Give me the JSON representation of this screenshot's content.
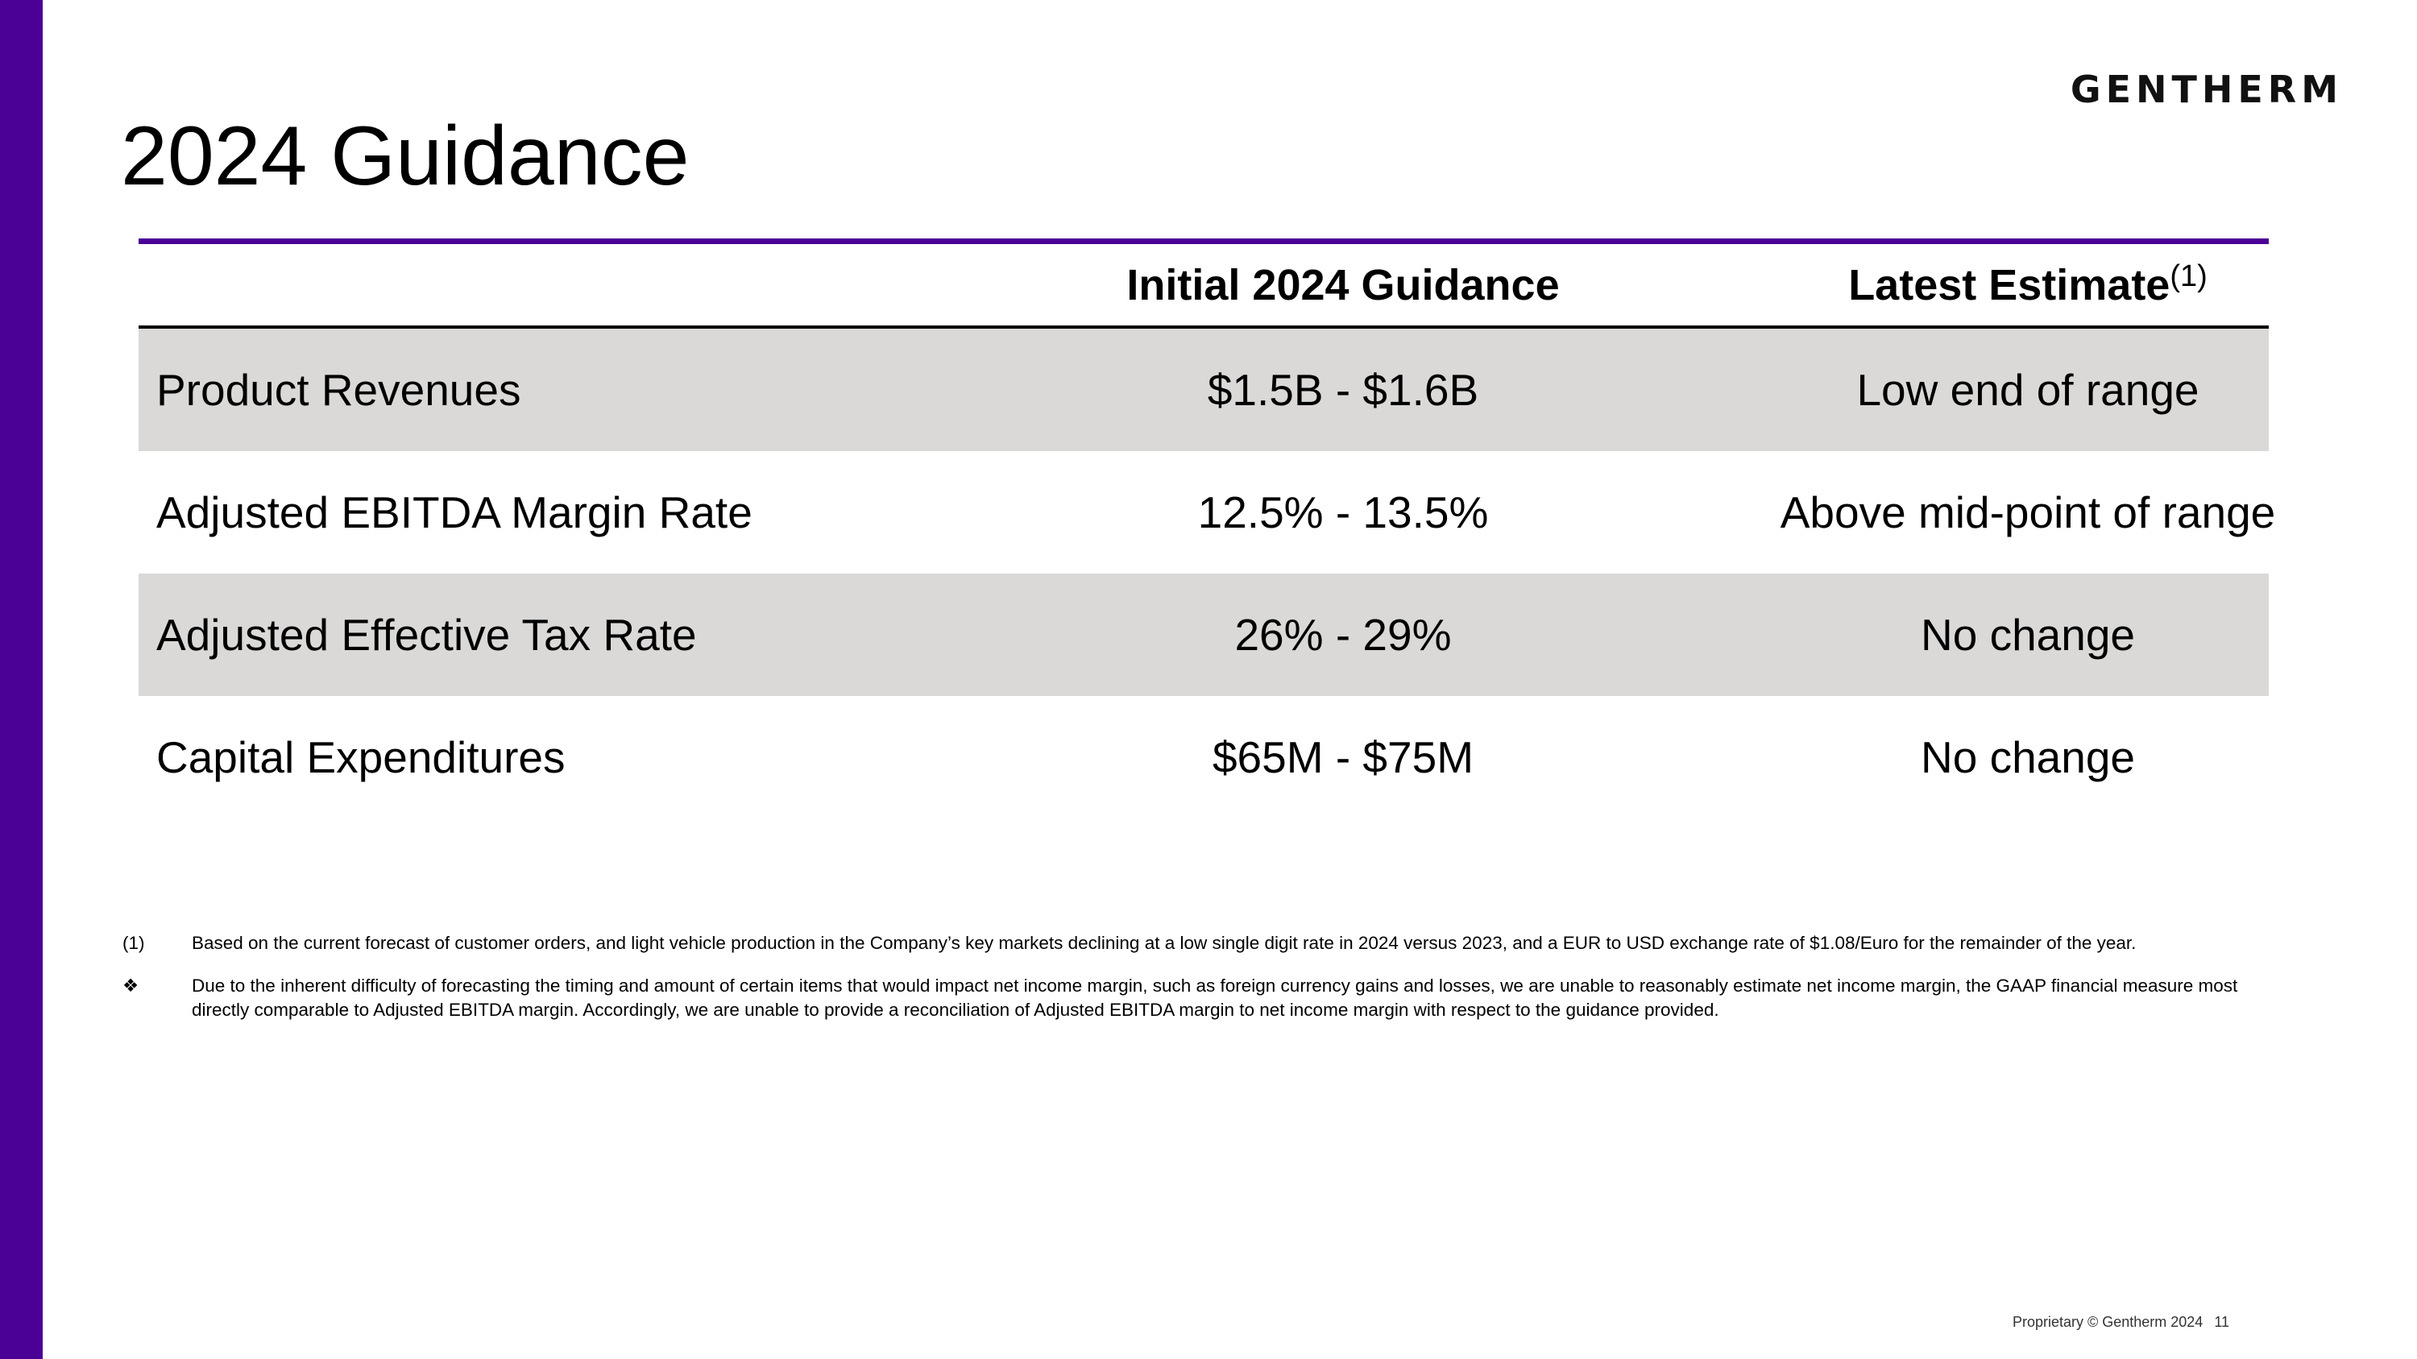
{
  "logo": {
    "text": "GENTHERM"
  },
  "title": "2024 Guidance",
  "table": {
    "headers": {
      "initial": "Initial 2024 Guidance",
      "latest": "Latest Estimate",
      "latest_superscript": "(1)"
    },
    "rows": [
      {
        "label": "Product Revenues",
        "initial": "$1.5B - $1.6B",
        "latest": "Low end of range"
      },
      {
        "label": "Adjusted EBITDA Margin Rate",
        "initial": "12.5% - 13.5%",
        "latest": "Above mid-point of range"
      },
      {
        "label": "Adjusted Effective Tax Rate",
        "initial": "26% - 29%",
        "latest": "No change"
      },
      {
        "label": "Capital Expenditures",
        "initial": "$65M - $75M",
        "latest": "No change"
      }
    ]
  },
  "footnotes": [
    {
      "marker": "(1)",
      "text": "Based on the current forecast of customer orders, and light vehicle production in the Company’s key markets declining at a low single digit rate in 2024 versus 2023, and a EUR to USD exchange rate of $1.08/Euro for the remainder of the year."
    },
    {
      "marker": "❖",
      "text": "Due to the inherent difficulty of forecasting the timing and amount of certain items that would impact net income margin, such as foreign currency gains and losses, we are unable to reasonably estimate net income margin, the GAAP financial measure most directly comparable to Adjusted EBITDA margin. Accordingly, we are unable to provide a reconciliation of Adjusted EBITDA margin to net income margin with respect to the guidance provided."
    }
  ],
  "footer": {
    "text": "Proprietary © Gentherm 2024",
    "page_number": "11"
  },
  "colors": {
    "accent": "#4b0096",
    "row_shade": "#dad9d7"
  }
}
